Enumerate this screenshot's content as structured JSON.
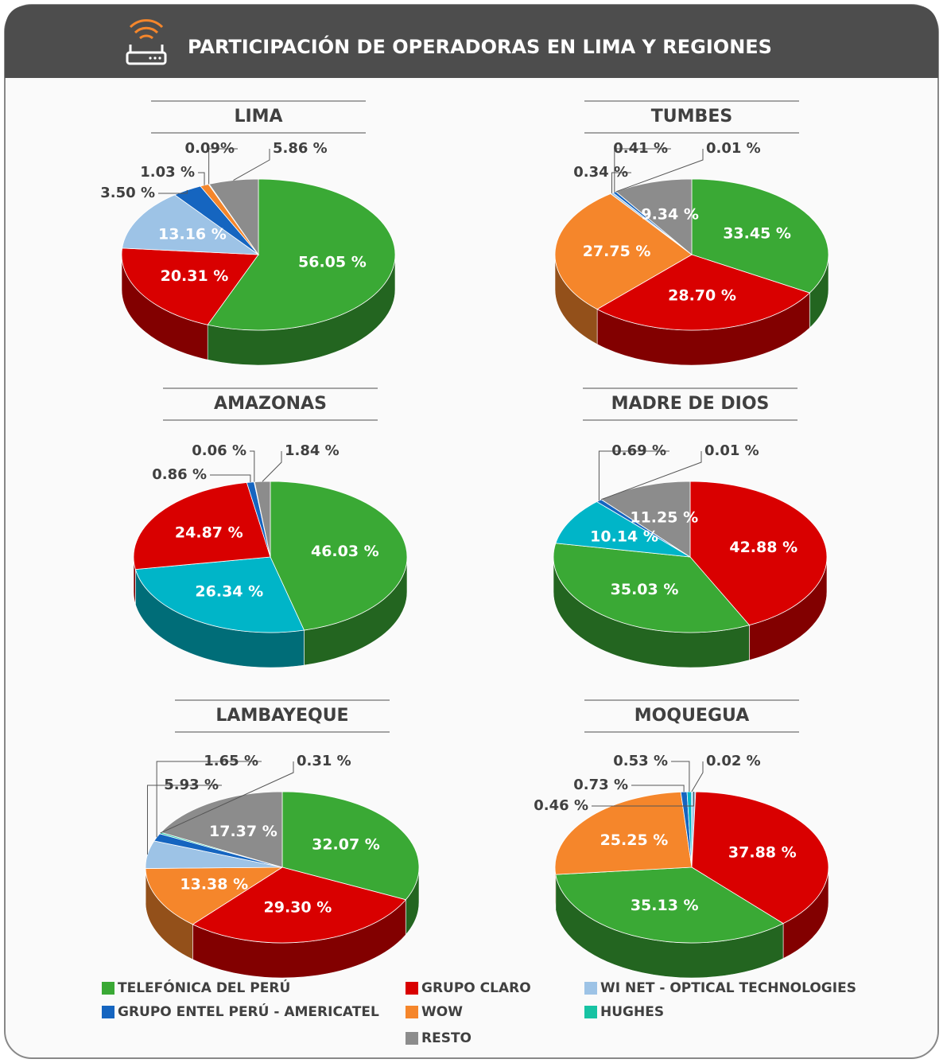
{
  "title": "PARTICIPACIÓN DE OPERADORAS EN LIMA Y REGIONES",
  "legend": [
    {
      "name": "TELEFÓNICA DEL PERÚ",
      "color": "#3aa935"
    },
    {
      "name": "GRUPO CLARO",
      "color": "#d90000"
    },
    {
      "name": "WI NET - OPTICAL TECHNOLOGIES",
      "color": "#9dc3e6"
    },
    {
      "name": "GRUPO ENTEL PERÚ - AMERICATEL",
      "color": "#1565c0"
    },
    {
      "name": "WOW",
      "color": "#f5862b"
    },
    {
      "name": "HUGHES",
      "color": "#17c3a3"
    },
    {
      "name": "RESTO",
      "color": "#8c8c8c"
    }
  ],
  "chart_data": [
    {
      "type": "pie",
      "title": "LIMA",
      "values": [
        56.05,
        20.31,
        13.16,
        3.5,
        1.03,
        0.09,
        5.86
      ],
      "value_labels": [
        "56.05 %",
        "20.31 %",
        "13.16 %",
        "3.50 %",
        "1.03 %",
        "0.09%",
        "5.86 %"
      ],
      "colors": [
        "#3aa935",
        "#d90000",
        "#9dc3e6",
        "#1565c0",
        "#f5862b",
        "#17c3a3",
        "#8c8c8c"
      ]
    },
    {
      "type": "pie",
      "title": "TUMBES",
      "values": [
        33.45,
        28.7,
        27.75,
        0.34,
        0.41,
        0.01,
        9.34
      ],
      "value_labels": [
        "33.45 %",
        "28.70 %",
        "27.75 %",
        "0.34 %",
        "0.41 %",
        "0.01 %",
        "9.34 %"
      ],
      "colors": [
        "#3aa935",
        "#d90000",
        "#f5862b",
        "#9dc3e6",
        "#1565c0",
        "#17c3a3",
        "#8c8c8c"
      ]
    },
    {
      "type": "pie",
      "title": "AMAZONAS",
      "values": [
        46.03,
        26.34,
        24.87,
        0.86,
        0.06,
        1.84
      ],
      "value_labels": [
        "46.03 %",
        "26.34 %",
        "24.87 %",
        "0.86 %",
        "0.06 %",
        "1.84 %"
      ],
      "colors": [
        "#3aa935",
        "#00b5c8",
        "#d90000",
        "#1565c0",
        "#17c3a3",
        "#8c8c8c"
      ]
    },
    {
      "type": "pie",
      "title": "MADRE DE DIOS",
      "values": [
        42.88,
        35.03,
        10.14,
        0.69,
        0.01,
        11.25
      ],
      "value_labels": [
        "42.88 %",
        "35.03 %",
        "10.14 %",
        "0.69 %",
        "0.01 %",
        "11.25 %"
      ],
      "colors": [
        "#d90000",
        "#3aa935",
        "#00b5c8",
        "#1565c0",
        "#17c3a3",
        "#8c8c8c"
      ]
    },
    {
      "type": "pie",
      "title": "LAMBAYEQUE",
      "values": [
        32.07,
        29.3,
        13.38,
        5.93,
        1.65,
        0.31,
        17.37
      ],
      "value_labels": [
        "32.07 %",
        "29.30 %",
        "13.38 %",
        "5.93 %",
        "1.65 %",
        "0.31 %",
        "17.37 %"
      ],
      "colors": [
        "#3aa935",
        "#d90000",
        "#f5862b",
        "#9dc3e6",
        "#1565c0",
        "#17c3a3",
        "#8c8c8c"
      ]
    },
    {
      "type": "pie",
      "title": "MOQUEGUA",
      "values": [
        0.46,
        37.88,
        35.13,
        25.25,
        0.73,
        0.53,
        0.02
      ],
      "value_labels": [
        "0.46 %",
        "37.88 %",
        "35.13 %",
        "25.25 %",
        "0.73 %",
        "0.53 %",
        "0.02 %"
      ],
      "colors": [
        "#9dc3e6",
        "#d90000",
        "#3aa935",
        "#f5862b",
        "#1565c0",
        "#00b5c8",
        "#17c3a3"
      ]
    }
  ]
}
